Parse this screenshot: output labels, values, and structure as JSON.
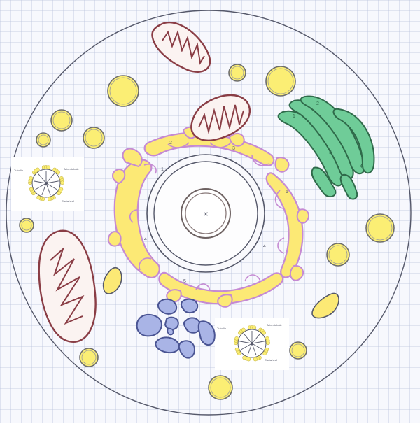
{
  "colors": {
    "paper": "#f7f8fd",
    "grid": "#b9c2dc",
    "ink": "#55586a",
    "vesicle_fill": "#fbee74",
    "vesicle_stroke": "#c9b94a",
    "er_fill": "#fce975",
    "er_stroke": "#c58ad3",
    "mito_fill": "#fbf3f1",
    "mito_stroke": "#8a3d45",
    "golgi_fill": "#6fcc98",
    "golgi_stroke": "#2f6a4a",
    "lysosome_fill": "#a9b4e6",
    "lysosome_stroke": "#4a5493"
  },
  "organelles": {
    "nucleus_mark": "×",
    "er_numbers": [
      "2",
      "1",
      "3",
      "5",
      "4",
      "4",
      "5"
    ],
    "golgi_numbers": [
      "1",
      "2",
      "3",
      "4"
    ]
  },
  "centriole_labels": {
    "left": {
      "a": "Tubulin",
      "b": "Microtubule",
      "c": "Cartwheel"
    },
    "right": {
      "a": "Tubulin",
      "b": "Microtubule",
      "c": "Cartwheel"
    }
  }
}
